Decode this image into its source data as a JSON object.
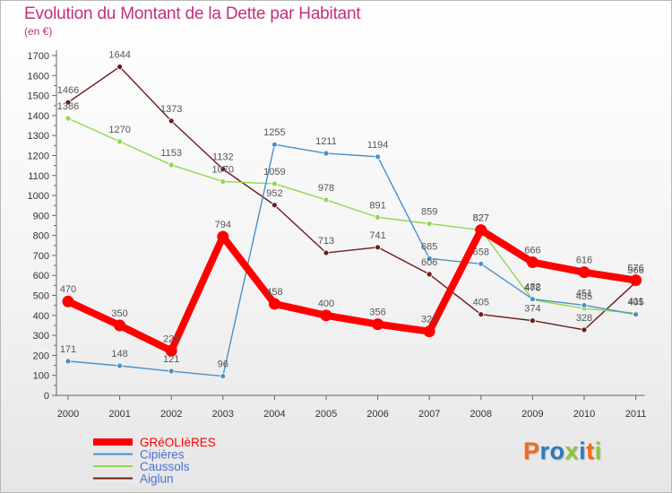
{
  "title": "Evolution du Montant de la Dette par Habitant",
  "subtitle": "(en €)",
  "logo": "Proxiti",
  "logo_colors": [
    "#f26a1b",
    "#2b7bbf",
    "#2b7bbf",
    "#8cc63f",
    "#2b7bbf",
    "#f26a1b",
    "#8cc63f"
  ],
  "chart_data": {
    "type": "line",
    "categories": [
      "2000",
      "2001",
      "2002",
      "2003",
      "2004",
      "2005",
      "2006",
      "2007",
      "2008",
      "2009",
      "2010",
      "2011"
    ],
    "ylim": [
      0,
      1700
    ],
    "yticks": [
      0,
      100,
      200,
      300,
      400,
      500,
      600,
      700,
      800,
      900,
      1000,
      1100,
      1200,
      1300,
      1400,
      1500,
      1600,
      1700
    ],
    "legend_position": "bottom-left",
    "grid": false,
    "series": [
      {
        "name": "GRéOLIèRES",
        "color": "#ff0000",
        "values": [
          470,
          350,
          223,
          794,
          458,
          400,
          356,
          320,
          827,
          666,
          616,
          576
        ]
      },
      {
        "name": "Cipières",
        "color": "#4a90c8",
        "values": [
          171,
          148,
          121,
          96,
          1255,
          1211,
          1194,
          685,
          658,
          482,
          451,
          405
        ]
      },
      {
        "name": "Caussols",
        "color": "#8ed94f",
        "values": [
          1386,
          1270,
          1153,
          1070,
          1059,
          978,
          891,
          859,
          827,
          478,
          435,
          411
        ]
      },
      {
        "name": "Aiglun",
        "color": "#6e1b1b",
        "values": [
          1466,
          1644,
          1373,
          1132,
          952,
          713,
          741,
          606,
          405,
          374,
          328,
          566
        ]
      }
    ],
    "label_order": [
      3,
      2,
      1,
      0
    ]
  }
}
